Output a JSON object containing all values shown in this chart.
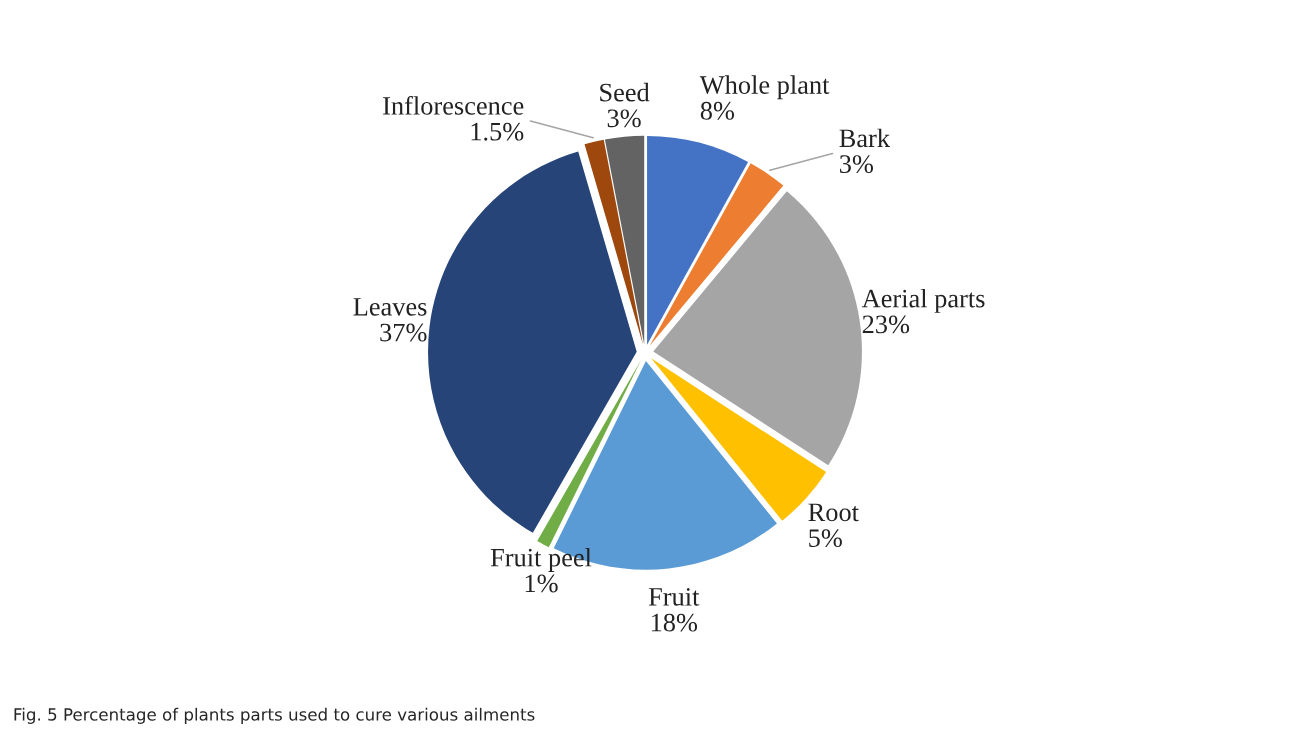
{
  "chart_data": {
    "type": "pie",
    "categories": [
      "Whole plant",
      "Bark",
      "Aerial parts",
      "Root",
      "Fruit",
      "Fruit peel",
      "Leaves",
      "Inflorescence",
      "Seed"
    ],
    "values": [
      8,
      3,
      23,
      5,
      18,
      1,
      37,
      1.5,
      3
    ],
    "value_labels": [
      "8%",
      "3%",
      "23%",
      "5%",
      "18%",
      "1%",
      "37%",
      "1.5%",
      "3%"
    ],
    "colors": [
      "#4472c4",
      "#ed7d31",
      "#a5a5a5",
      "#ffc000",
      "#5b9bd5",
      "#70ad47",
      "#264478",
      "#9e480e",
      "#636363"
    ],
    "annotations": [
      "Fig. 5 Percentage of plants parts used to cure various ailments"
    ]
  }
}
